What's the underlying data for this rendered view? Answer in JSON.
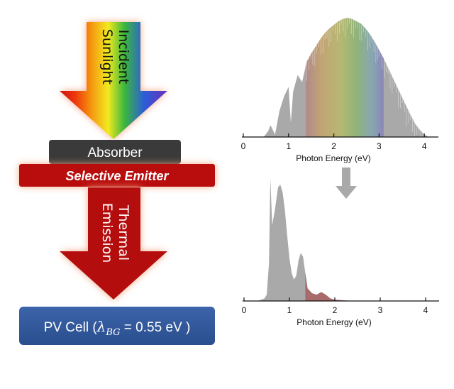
{
  "left_diagram": {
    "incident_label_line1": "Incident",
    "incident_label_line2": "Sunlight",
    "absorber_label": "Absorber",
    "emitter_label": "Selective Emitter",
    "thermal_label_line1": "Thermal",
    "thermal_label_line2": "Emission",
    "pv_cell_prefix": "PV Cell (",
    "pv_cell_lambda": "λ",
    "pv_cell_subscript": "BG",
    "pv_cell_suffix": " = 0.55 eV )",
    "colors": {
      "absorber": "#3a3a3a",
      "emitter": "#b90a0a",
      "thermal_arrow": "#b40c0c",
      "pv_cell": "#2e5597",
      "glow": "#f0a07a"
    }
  },
  "chart_data": [
    {
      "type": "area",
      "name": "solar-spectrum",
      "xlabel": "Photon Energy (eV)",
      "xlim": [
        0,
        4.2
      ],
      "xticks": [
        0,
        1,
        2,
        3,
        4
      ],
      "x": [
        0.45,
        0.55,
        0.6,
        0.7,
        0.8,
        0.9,
        1.0,
        1.05,
        1.1,
        1.2,
        1.3,
        1.4,
        1.5,
        1.6,
        1.7,
        1.8,
        1.9,
        2.0,
        2.1,
        2.2,
        2.3,
        2.4,
        2.5,
        2.6,
        2.7,
        2.8,
        2.9,
        3.0,
        3.1,
        3.2,
        3.3,
        3.4,
        3.5,
        3.6,
        3.7,
        3.8,
        3.9,
        4.0,
        4.1
      ],
      "y": [
        0,
        0.05,
        0.1,
        0.02,
        0.22,
        0.34,
        0.42,
        0.12,
        0.38,
        0.52,
        0.46,
        0.63,
        0.7,
        0.76,
        0.82,
        0.87,
        0.91,
        0.94,
        0.97,
        0.99,
        1.0,
        0.99,
        0.97,
        0.95,
        0.91,
        0.86,
        0.8,
        0.73,
        0.66,
        0.58,
        0.5,
        0.42,
        0.34,
        0.26,
        0.18,
        0.11,
        0.06,
        0.02,
        0
      ],
      "visible_band": [
        1.38,
        3.1
      ],
      "colors": {
        "fill": "#a9a9a9"
      }
    },
    {
      "type": "area",
      "name": "thermal-emission",
      "xlabel": "Photon Energy (eV)",
      "xlim": [
        0,
        4.2
      ],
      "xticks": [
        0,
        1,
        2,
        3,
        4
      ],
      "x": [
        0.3,
        0.45,
        0.5,
        0.55,
        0.58,
        0.62,
        0.68,
        0.75,
        0.8,
        0.85,
        0.9,
        0.95,
        1.0,
        1.05,
        1.1,
        1.15,
        1.2,
        1.25,
        1.3,
        1.35,
        1.4,
        1.5,
        1.6,
        1.7,
        1.8,
        1.9,
        2.0,
        2.2,
        2.4
      ],
      "y": [
        0,
        0.02,
        0.05,
        0.3,
        0.97,
        0.6,
        0.72,
        0.9,
        0.92,
        0.86,
        0.72,
        0.52,
        0.34,
        0.22,
        0.17,
        0.2,
        0.32,
        0.38,
        0.35,
        0.22,
        0.1,
        0.06,
        0.05,
        0.07,
        0.05,
        0.02,
        0.01,
        0.005,
        0
      ],
      "above_bandgap_start": 1.35,
      "colors": {
        "fill": "#a9a9a9",
        "above_bandgap": "#a86a6a"
      }
    }
  ]
}
